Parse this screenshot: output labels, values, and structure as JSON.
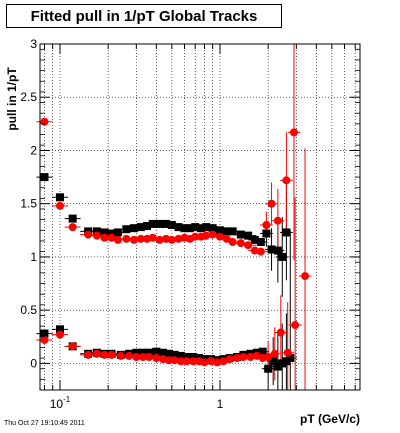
{
  "chart_data": {
    "type": "scatter",
    "title": "Fitted pull in 1/pT  Global Tracks",
    "xlabel": "pT (GeV/c)",
    "ylabel": "pull in 1/pT",
    "x_scale": "log",
    "xlim": [
      0.075,
      7.5
    ],
    "ylim": [
      -0.25,
      3.0
    ],
    "grid": true,
    "yticks": [
      {
        "value": 0,
        "label": "0"
      },
      {
        "value": 0.5,
        "label": "0.5"
      },
      {
        "value": 1,
        "label": "1"
      },
      {
        "value": 1.5,
        "label": "1.5"
      },
      {
        "value": 2,
        "label": "2"
      },
      {
        "value": 2.5,
        "label": "2.5"
      },
      {
        "value": 3,
        "label": "3"
      }
    ],
    "xticks": [
      {
        "value": 0.1,
        "label": "10",
        "exp": "-1"
      },
      {
        "value": 1,
        "label": "1",
        "exp": ""
      }
    ],
    "series": [
      {
        "color": "#000000",
        "marker": "square",
        "values": [
          {
            "x": 0.08,
            "y": 1.75
          },
          {
            "x": 0.1,
            "y": 1.56
          },
          {
            "x": 0.12,
            "y": 1.36
          },
          {
            "x": 0.15,
            "y": 1.24
          },
          {
            "x": 0.17,
            "y": 1.24
          },
          {
            "x": 0.19,
            "y": 1.23
          },
          {
            "x": 0.21,
            "y": 1.22
          },
          {
            "x": 0.23,
            "y": 1.23
          },
          {
            "x": 0.26,
            "y": 1.26
          },
          {
            "x": 0.29,
            "y": 1.27
          },
          {
            "x": 0.32,
            "y": 1.28
          },
          {
            "x": 0.35,
            "y": 1.29
          },
          {
            "x": 0.38,
            "y": 1.31
          },
          {
            "x": 0.42,
            "y": 1.31
          },
          {
            "x": 0.46,
            "y": 1.31
          },
          {
            "x": 0.5,
            "y": 1.3
          },
          {
            "x": 0.55,
            "y": 1.28
          },
          {
            "x": 0.6,
            "y": 1.27
          },
          {
            "x": 0.65,
            "y": 1.27
          },
          {
            "x": 0.7,
            "y": 1.28
          },
          {
            "x": 0.76,
            "y": 1.27
          },
          {
            "x": 0.82,
            "y": 1.28
          },
          {
            "x": 0.9,
            "y": 1.27
          },
          {
            "x": 1.0,
            "y": 1.25
          },
          {
            "x": 1.1,
            "y": 1.24
          },
          {
            "x": 1.2,
            "y": 1.24
          },
          {
            "x": 1.35,
            "y": 1.21
          },
          {
            "x": 1.5,
            "y": 1.2
          },
          {
            "x": 1.65,
            "y": 1.16
          },
          {
            "x": 1.8,
            "y": 1.14
          },
          {
            "x": 1.95,
            "y": 1.22
          },
          {
            "x": 2.1,
            "y": 1.07
          },
          {
            "x": 2.3,
            "y": 1.06
          },
          {
            "x": 2.45,
            "y": 1.0
          },
          {
            "x": 2.6,
            "y": 1.23
          },
          {
            "x": 0.08,
            "y": 0.28
          },
          {
            "x": 0.1,
            "y": 0.32
          },
          {
            "x": 0.12,
            "y": 0.16
          },
          {
            "x": 0.15,
            "y": 0.09
          },
          {
            "x": 0.17,
            "y": 0.1
          },
          {
            "x": 0.19,
            "y": 0.09
          },
          {
            "x": 0.21,
            "y": 0.09
          },
          {
            "x": 0.24,
            "y": 0.08
          },
          {
            "x": 0.27,
            "y": 0.09
          },
          {
            "x": 0.3,
            "y": 0.1
          },
          {
            "x": 0.33,
            "y": 0.1
          },
          {
            "x": 0.36,
            "y": 0.1
          },
          {
            "x": 0.4,
            "y": 0.11
          },
          {
            "x": 0.44,
            "y": 0.1
          },
          {
            "x": 0.48,
            "y": 0.09
          },
          {
            "x": 0.52,
            "y": 0.08
          },
          {
            "x": 0.57,
            "y": 0.07
          },
          {
            "x": 0.62,
            "y": 0.06
          },
          {
            "x": 0.68,
            "y": 0.06
          },
          {
            "x": 0.74,
            "y": 0.05
          },
          {
            "x": 0.8,
            "y": 0.04
          },
          {
            "x": 0.88,
            "y": 0.04
          },
          {
            "x": 0.96,
            "y": 0.03
          },
          {
            "x": 1.05,
            "y": 0.04
          },
          {
            "x": 1.15,
            "y": 0.05
          },
          {
            "x": 1.28,
            "y": 0.06
          },
          {
            "x": 1.4,
            "y": 0.08
          },
          {
            "x": 1.55,
            "y": 0.09
          },
          {
            "x": 1.7,
            "y": 0.1
          },
          {
            "x": 1.85,
            "y": 0.11
          },
          {
            "x": 2.0,
            "y": -0.05
          },
          {
            "x": 2.15,
            "y": 0.02
          },
          {
            "x": 2.3,
            "y": -0.03
          },
          {
            "x": 2.45,
            "y": 0.0
          },
          {
            "x": 2.6,
            "y": 0.02
          },
          {
            "x": 2.75,
            "y": 0.05
          }
        ]
      },
      {
        "color": "#ff0000",
        "marker": "circle",
        "values": [
          {
            "x": 0.08,
            "y": 2.27
          },
          {
            "x": 0.1,
            "y": 1.48
          },
          {
            "x": 0.12,
            "y": 1.28
          },
          {
            "x": 0.15,
            "y": 1.21
          },
          {
            "x": 0.17,
            "y": 1.2
          },
          {
            "x": 0.19,
            "y": 1.18
          },
          {
            "x": 0.21,
            "y": 1.18
          },
          {
            "x": 0.23,
            "y": 1.16
          },
          {
            "x": 0.26,
            "y": 1.17
          },
          {
            "x": 0.29,
            "y": 1.16
          },
          {
            "x": 0.32,
            "y": 1.17
          },
          {
            "x": 0.35,
            "y": 1.17
          },
          {
            "x": 0.38,
            "y": 1.18
          },
          {
            "x": 0.42,
            "y": 1.16
          },
          {
            "x": 0.46,
            "y": 1.17
          },
          {
            "x": 0.5,
            "y": 1.16
          },
          {
            "x": 0.55,
            "y": 1.17
          },
          {
            "x": 0.6,
            "y": 1.18
          },
          {
            "x": 0.65,
            "y": 1.17
          },
          {
            "x": 0.7,
            "y": 1.19
          },
          {
            "x": 0.76,
            "y": 1.19
          },
          {
            "x": 0.82,
            "y": 1.2
          },
          {
            "x": 0.9,
            "y": 1.21
          },
          {
            "x": 1.0,
            "y": 1.19
          },
          {
            "x": 1.1,
            "y": 1.17
          },
          {
            "x": 1.2,
            "y": 1.14
          },
          {
            "x": 1.35,
            "y": 1.13
          },
          {
            "x": 1.5,
            "y": 1.11
          },
          {
            "x": 1.65,
            "y": 1.06
          },
          {
            "x": 1.8,
            "y": 1.05
          },
          {
            "x": 1.95,
            "y": 1.3
          },
          {
            "x": 2.1,
            "y": 1.5
          },
          {
            "x": 2.3,
            "y": 1.34
          },
          {
            "x": 2.6,
            "y": 1.72
          },
          {
            "x": 2.9,
            "y": 2.17
          },
          {
            "x": 3.4,
            "y": 0.82
          },
          {
            "x": 0.08,
            "y": 0.22
          },
          {
            "x": 0.1,
            "y": 0.27
          },
          {
            "x": 0.12,
            "y": 0.16
          },
          {
            "x": 0.15,
            "y": 0.08
          },
          {
            "x": 0.17,
            "y": 0.09
          },
          {
            "x": 0.19,
            "y": 0.08
          },
          {
            "x": 0.21,
            "y": 0.08
          },
          {
            "x": 0.24,
            "y": 0.07
          },
          {
            "x": 0.27,
            "y": 0.07
          },
          {
            "x": 0.3,
            "y": 0.06
          },
          {
            "x": 0.33,
            "y": 0.06
          },
          {
            "x": 0.36,
            "y": 0.06
          },
          {
            "x": 0.4,
            "y": 0.05
          },
          {
            "x": 0.44,
            "y": 0.04
          },
          {
            "x": 0.48,
            "y": 0.03
          },
          {
            "x": 0.52,
            "y": 0.03
          },
          {
            "x": 0.57,
            "y": 0.02
          },
          {
            "x": 0.62,
            "y": 0.02
          },
          {
            "x": 0.68,
            "y": 0.02
          },
          {
            "x": 0.74,
            "y": 0.02
          },
          {
            "x": 0.8,
            "y": 0.01
          },
          {
            "x": 0.88,
            "y": 0.02
          },
          {
            "x": 0.96,
            "y": 0.01
          },
          {
            "x": 1.05,
            "y": 0.02
          },
          {
            "x": 1.15,
            "y": 0.04
          },
          {
            "x": 1.28,
            "y": 0.05
          },
          {
            "x": 1.4,
            "y": 0.06
          },
          {
            "x": 1.55,
            "y": 0.06
          },
          {
            "x": 1.7,
            "y": 0.07
          },
          {
            "x": 1.85,
            "y": 0.05
          },
          {
            "x": 2.0,
            "y": 0.06
          },
          {
            "x": 2.2,
            "y": 0.09
          },
          {
            "x": 2.4,
            "y": 0.29
          },
          {
            "x": 2.65,
            "y": 0.1
          },
          {
            "x": 2.95,
            "y": 0.36
          }
        ]
      }
    ]
  },
  "footer": {
    "timestamp": "Thu Oct 27 19:10:49 2011"
  }
}
